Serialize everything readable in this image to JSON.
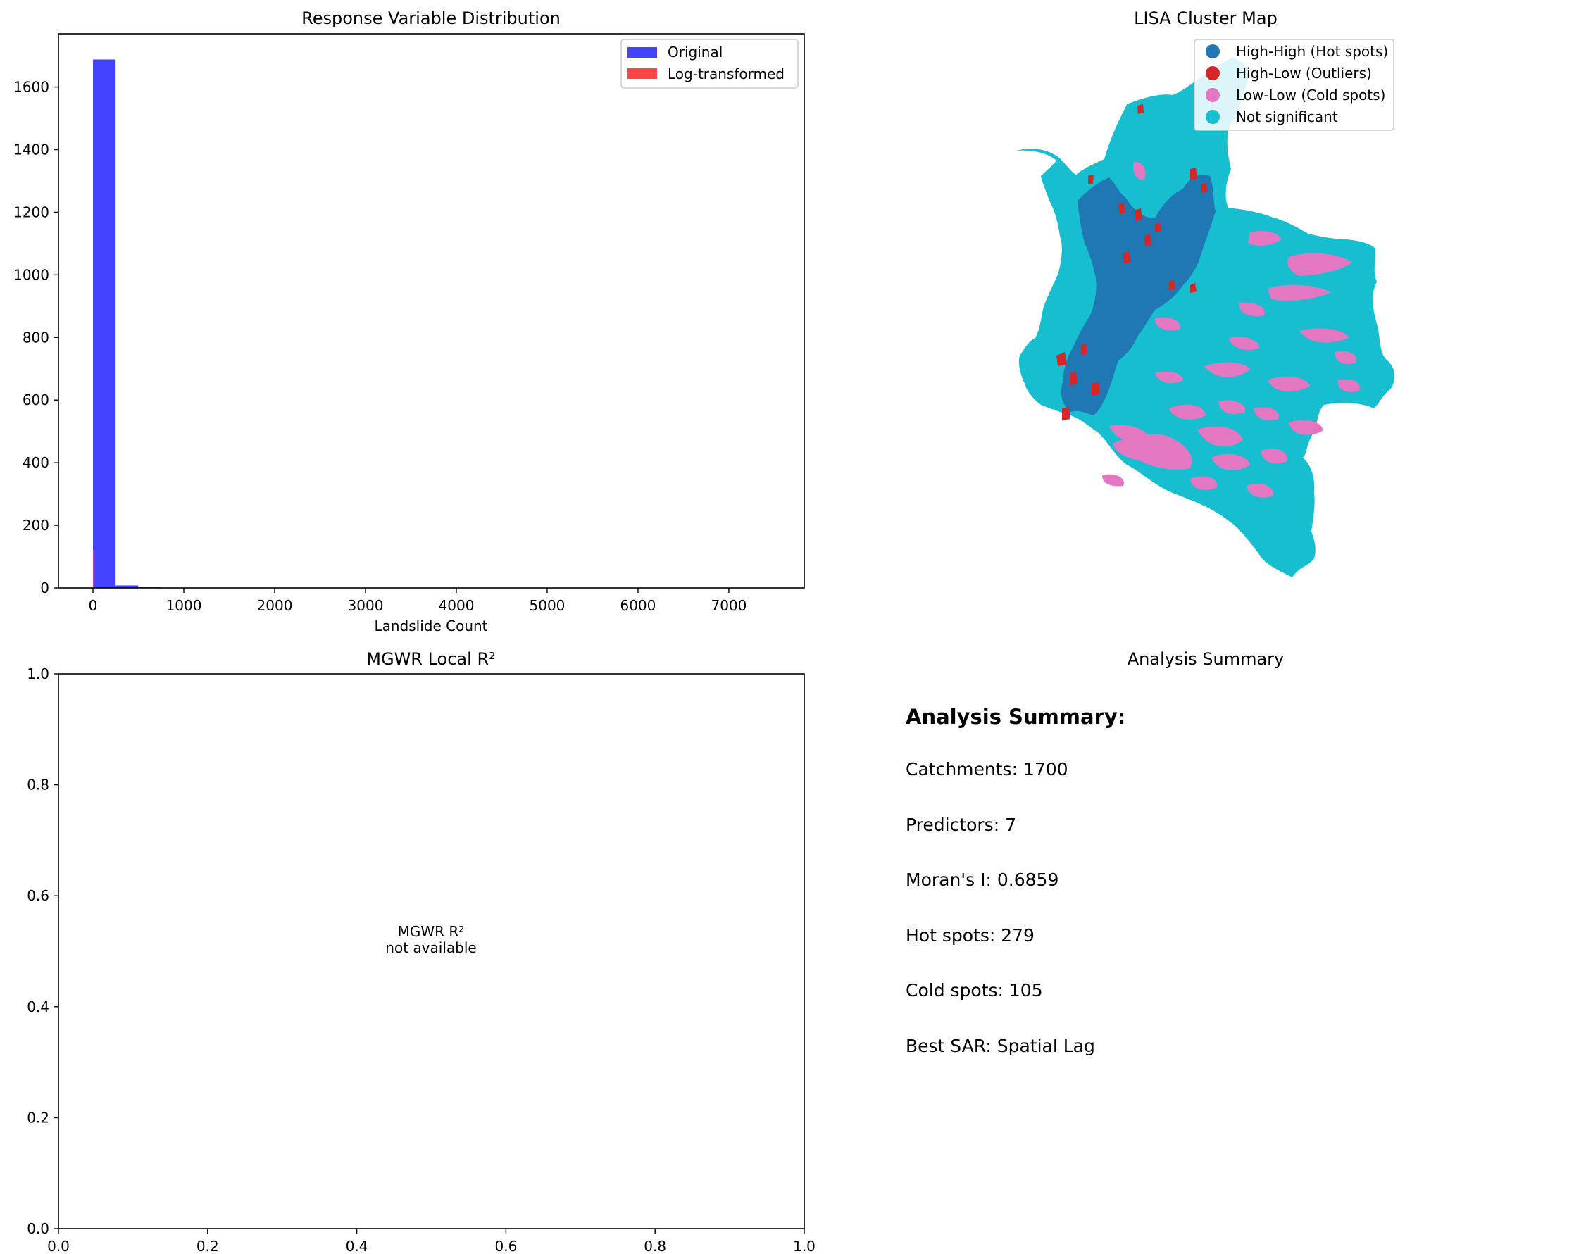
{
  "chart_data": [
    {
      "type": "bar",
      "title": "Response Variable Distribution",
      "xlabel": "Landslide Count",
      "ylabel": "",
      "xlim": [
        -380,
        7830
      ],
      "ylim": [
        0,
        1770
      ],
      "xticks": [
        "0",
        "1000",
        "2000",
        "3000",
        "4000",
        "5000",
        "6000",
        "7000"
      ],
      "yticks": [
        "0",
        "200",
        "400",
        "600",
        "800",
        "1000",
        "1200",
        "1400",
        "1600"
      ],
      "legend_position": "top-right",
      "series": [
        {
          "name": "Original",
          "color": "#4444ff",
          "bins": [
            {
              "from": 0,
              "to": 249,
              "count": 1688
            },
            {
              "from": 249,
              "to": 498,
              "count": 8
            },
            {
              "from": 498,
              "to": 747,
              "count": 2
            },
            {
              "from": 747,
              "to": 996,
              "count": 1
            },
            {
              "from": 7219,
              "to": 7468,
              "count": 1
            }
          ]
        },
        {
          "name": "Log-transformed",
          "color": "#ff4444",
          "bins": [
            {
              "from": 0,
              "to": 9,
              "count": 120
            }
          ]
        }
      ]
    },
    {
      "type": "map",
      "title": "LISA Cluster Map",
      "legend_position": "top-right",
      "categories": [
        {
          "name": "High-High (Hot spots)",
          "color": "#1f77b4"
        },
        {
          "name": "High-Low (Outliers)",
          "color": "#d62728"
        },
        {
          "name": "Low-Low (Cold spots)",
          "color": "#e377c2"
        },
        {
          "name": "Not significant",
          "color": "#17becf"
        }
      ]
    },
    {
      "type": "scatter",
      "title": "MGWR Local R²",
      "xlim": [
        0,
        1
      ],
      "ylim": [
        0,
        1
      ],
      "xticks": [
        "0.0",
        "0.2",
        "0.4",
        "0.6",
        "0.8",
        "1.0"
      ],
      "yticks": [
        "0.0",
        "0.2",
        "0.4",
        "0.6",
        "0.8",
        "1.0"
      ],
      "message_line1": "MGWR R²",
      "message_line2": "not available"
    }
  ],
  "summary": {
    "panel_title": "Analysis Summary",
    "heading": "Analysis Summary:",
    "lines": [
      "Catchments: 1700",
      "Predictors: 7",
      "Moran's I: 0.6859",
      "Hot spots: 279",
      "Cold spots: 105",
      "Best SAR: Spatial Lag"
    ]
  }
}
